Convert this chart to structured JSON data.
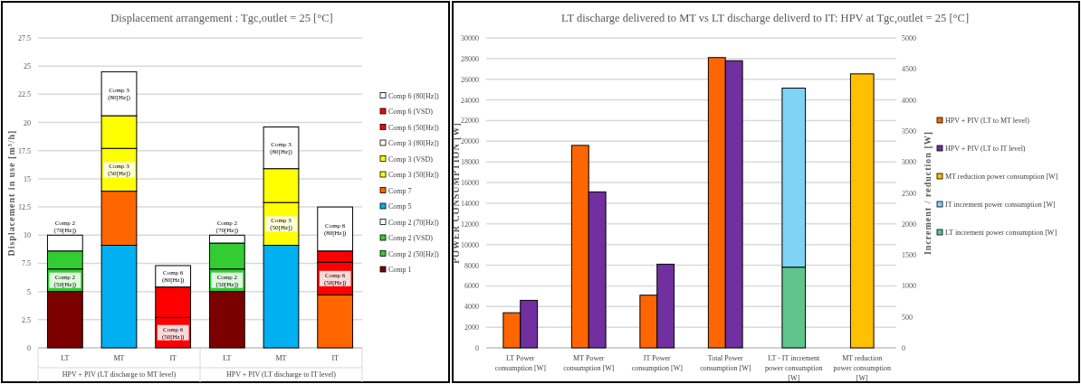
{
  "chart_data": [
    {
      "type": "bar",
      "title": "Displacement arrangement : Tgc,outlet = 25 [°C]",
      "ylabel": "Displacement in use [m³/h]",
      "categories": [
        "LT",
        "MT",
        "IT",
        "LT",
        "MT",
        "IT"
      ],
      "stacked": true,
      "grid": "y",
      "legend": "right",
      "ylim": [
        0,
        27.5
      ],
      "yticks": [
        0,
        2.5,
        5,
        7.5,
        10,
        12.5,
        15,
        17.5,
        20,
        22.5,
        25,
        27.5
      ],
      "annotations": [
        "HPV + PIV (LT discharge to MT level)",
        "HPV + PIV (LT discharge to IT level)"
      ],
      "series": [
        {
          "name": "Comp 1",
          "color": "#7b0000",
          "values": [
            5,
            null,
            null,
            5,
            null,
            null
          ]
        },
        {
          "name": "Comp 2 (50[Hz])",
          "color": "#33cc33",
          "values": [
            2,
            null,
            null,
            2,
            null,
            null
          ],
          "value_labels": [
            "Comp 2 (50[Hz])",
            null,
            null,
            "Comp 2 (50[Hz])",
            null,
            null
          ]
        },
        {
          "name": "Comp 2 (VSD)",
          "color": "#33cc33",
          "values": [
            1.6,
            null,
            null,
            2.3,
            null,
            null
          ]
        },
        {
          "name": "Comp 2 (70[Hz])",
          "color": "#ffffff",
          "values": [
            1.4,
            null,
            null,
            0.7,
            null,
            null
          ],
          "value_labels": [
            "Comp 2 (70[Hz])",
            null,
            null,
            "Comp 2 (70[Hz])",
            null,
            null
          ]
        },
        {
          "name": "Comp 5",
          "color": "#00b0f0",
          "values": [
            null,
            9.1,
            null,
            null,
            9.1,
            null
          ]
        },
        {
          "name": "Comp 7",
          "color": "#ff6600",
          "values": [
            null,
            4.8,
            null,
            null,
            null,
            4.7
          ]
        },
        {
          "name": "Comp 3 (50[Hz])",
          "color": "#ffff00",
          "values": [
            null,
            3.8,
            null,
            null,
            3.8,
            null
          ],
          "value_labels": [
            null,
            "Comp 3 (50[Hz])",
            null,
            null,
            "Comp 3 (50[Hz])",
            null
          ]
        },
        {
          "name": "Comp 3 (VSD)",
          "color": "#ffff00",
          "values": [
            null,
            2.9,
            null,
            null,
            3,
            null
          ]
        },
        {
          "name": "Comp 3 (80[Hz])",
          "color": "#ffffff",
          "values": [
            null,
            3.9,
            null,
            null,
            3.7,
            null
          ],
          "value_labels": [
            null,
            "Comp 3 (80[Hz])",
            null,
            null,
            "Comp 3 (80[Hz])",
            null
          ]
        },
        {
          "name": "Comp 6 (50[Hz])",
          "color": "#ff0000",
          "values": [
            null,
            null,
            2.7,
            null,
            null,
            2.9
          ],
          "value_labels": [
            null,
            null,
            "Comp 6 (50[Hz])",
            null,
            null,
            "Comp 6 (50[Hz])"
          ]
        },
        {
          "name": "Comp 6 (VSD)",
          "color": "#ff0000",
          "values": [
            null,
            null,
            2.7,
            null,
            null,
            1
          ]
        },
        {
          "name": "Comp 6 (80[Hz])",
          "color": "#ffffff",
          "values": [
            null,
            null,
            1.9,
            null,
            null,
            3.9
          ],
          "value_labels": [
            null,
            null,
            "Comp 6 (80[Hz])",
            null,
            null,
            "Comp 6 (80[Hz])"
          ]
        }
      ]
    },
    {
      "type": "bar",
      "title": "LT discharge delivered to MT vs LT discharge deliverd to IT: HPV at Tgc,outlet = 25 [°C]",
      "ylabel": "POWER CONSUMPTION [W]",
      "y2label": "Increment / reduction [W]",
      "categories": [
        "LT Power consumption [W]",
        "MT Power consumption [W]",
        "IT Power consumption [W]",
        "Total Power consumption [W]",
        "LT - IT increment power consumption [W]",
        "MT reduction power consumption [W]"
      ],
      "grid": "y",
      "legend": "right",
      "ylim": [
        0,
        30000
      ],
      "yticks": [
        0,
        2000,
        4000,
        6000,
        8000,
        10000,
        12000,
        14000,
        16000,
        18000,
        20000,
        22000,
        24000,
        26000,
        28000,
        30000
      ],
      "y2lim": [
        0,
        5000
      ],
      "y2ticks": [
        0,
        500,
        1000,
        1500,
        2000,
        2500,
        3000,
        3500,
        4000,
        4500,
        5000
      ],
      "series": [
        {
          "name": "HPV + PIV (LT to MT level)",
          "color": "#ff6600",
          "values": [
            3400,
            19600,
            5100,
            28100,
            null,
            null
          ]
        },
        {
          "name": "HPV + PIV (LT to IT level)",
          "color": "#7030a0",
          "values": [
            4600,
            15100,
            8100,
            27800,
            null,
            null
          ]
        },
        {
          "name": "MT reduction power consumption [W]",
          "color": "#ffc000",
          "axis": "y2",
          "values": [
            null,
            null,
            null,
            null,
            null,
            4420
          ]
        },
        {
          "name": "IT increment power consumption [W]",
          "color": "#7fd4f5",
          "axis": "y2",
          "values": [
            null,
            null,
            null,
            null,
            2890,
            null
          ],
          "base": [
            null,
            null,
            null,
            null,
            1300,
            null
          ]
        },
        {
          "name": "LT increment power consumption [W]",
          "color": "#5fc58a",
          "axis": "y2",
          "values": [
            null,
            null,
            null,
            null,
            1300,
            null
          ]
        }
      ]
    }
  ]
}
